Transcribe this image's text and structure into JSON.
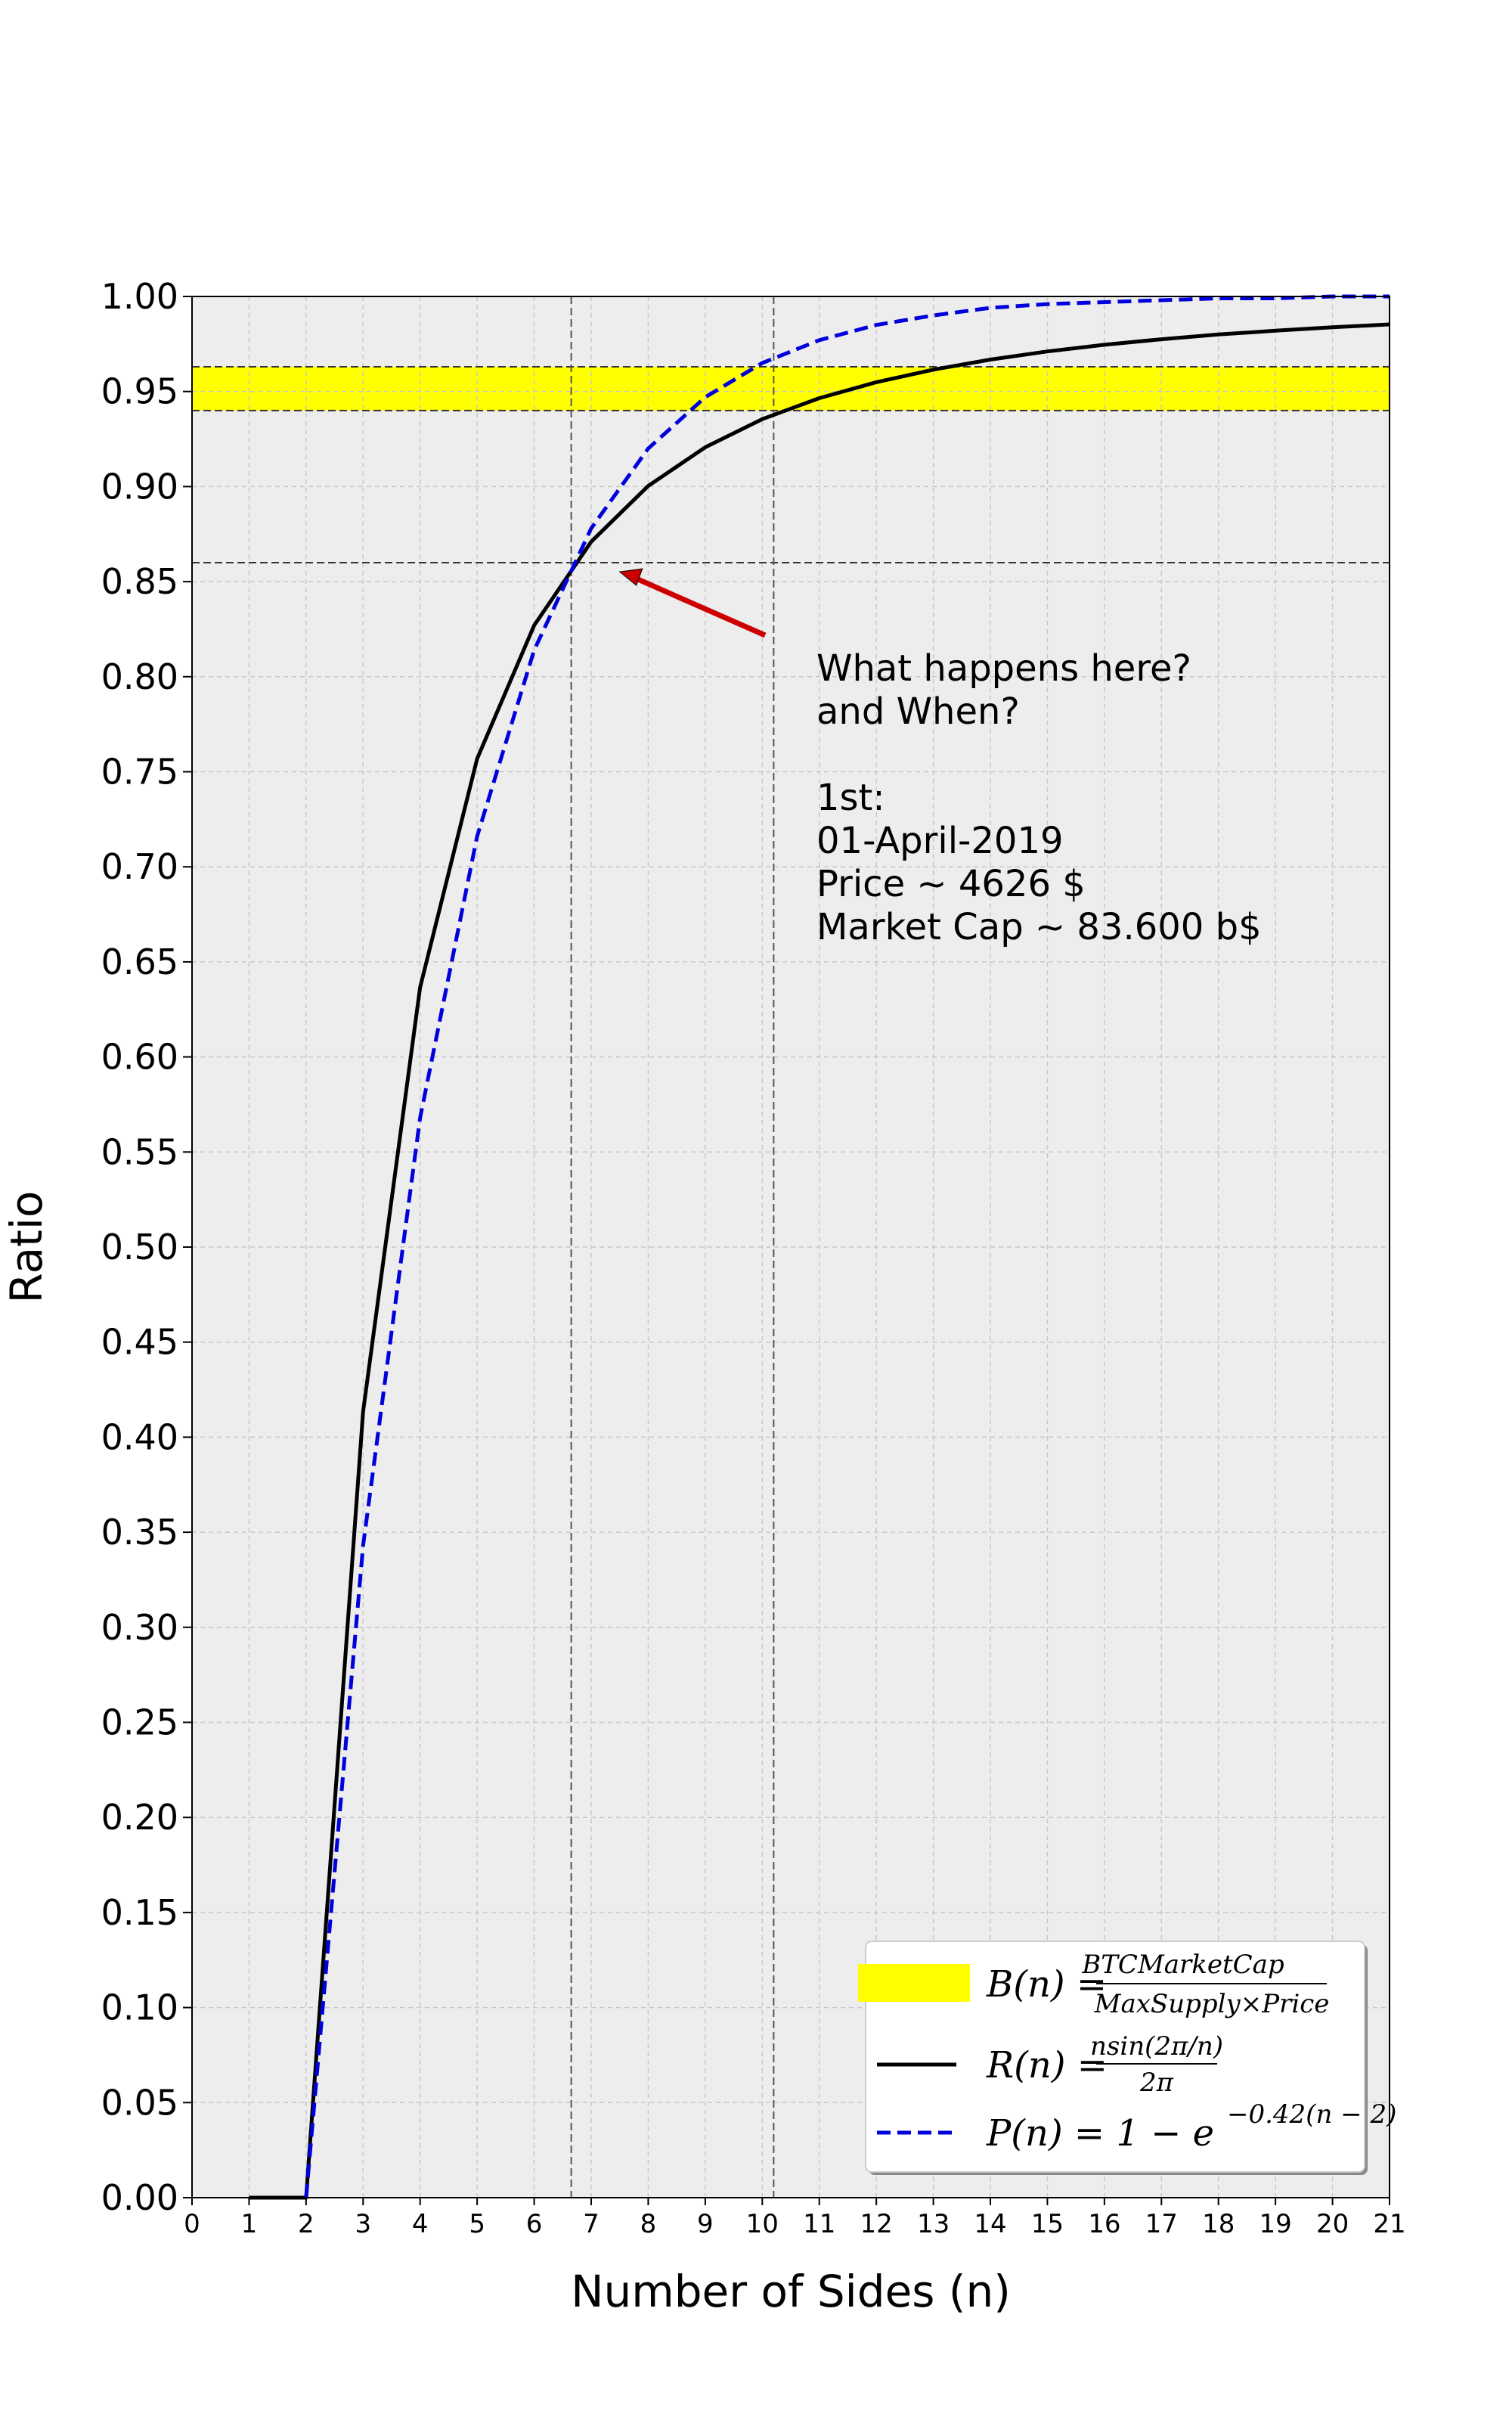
{
  "chart_data": {
    "type": "line",
    "xlabel": "Number of Sides (n)",
    "ylabel": "Ratio",
    "xlim": [
      0,
      21
    ],
    "ylim": [
      0,
      1
    ],
    "x_ticks": [
      "0",
      "1",
      "2",
      "3",
      "4",
      "5",
      "6",
      "7",
      "8",
      "9",
      "10",
      "11",
      "12",
      "13",
      "14",
      "15",
      "16",
      "17",
      "18",
      "19",
      "20",
      "21"
    ],
    "y_ticks": [
      "0.00",
      "0.05",
      "0.10",
      "0.15",
      "0.20",
      "0.25",
      "0.30",
      "0.35",
      "0.40",
      "0.45",
      "0.50",
      "0.55",
      "0.60",
      "0.65",
      "0.70",
      "0.75",
      "0.80",
      "0.85",
      "0.90",
      "0.95",
      "1.00"
    ],
    "grid": true,
    "legend_position": "bottom-right",
    "band": {
      "y_low": 0.94,
      "y_high": 0.963,
      "color": "#ffff00"
    },
    "reference_lines": {
      "horizontal": [
        0.86
      ],
      "vertical": [
        6.65,
        10.2
      ]
    },
    "series": [
      {
        "style": "solid",
        "color": "#000000",
        "x": [
          1,
          2,
          3,
          4,
          5,
          6,
          7,
          8,
          9,
          10,
          11,
          12,
          13,
          14,
          15,
          16,
          17,
          18,
          19,
          20,
          21
        ],
        "values": [
          0,
          0,
          0.4135,
          0.6366,
          0.7568,
          0.827,
          0.871,
          0.9003,
          0.9207,
          0.9355,
          0.9465,
          0.9549,
          0.9615,
          0.9668,
          0.9711,
          0.9746,
          0.9775,
          0.98,
          0.982,
          0.9838,
          0.9853
        ]
      },
      {
        "style": "dashed",
        "color": "#0000dd",
        "x": [
          2,
          3,
          4,
          5,
          6,
          7,
          8,
          9,
          10,
          11,
          12,
          13,
          14,
          15,
          16,
          17,
          18,
          19,
          20,
          21
        ],
        "values": [
          0,
          0.343,
          0.568,
          0.716,
          0.814,
          0.878,
          0.92,
          0.947,
          0.965,
          0.977,
          0.985,
          0.99,
          0.994,
          0.996,
          0.997,
          0.998,
          0.999,
          0.999,
          1.0,
          1.0
        ]
      }
    ],
    "legend": [
      {
        "swatch": "band",
        "label_prefix": "B(n) = ",
        "numerator": "BTCMarketCap",
        "denominator": "MaxSupply×Price"
      },
      {
        "swatch": "solid",
        "label_prefix": "R(n) = ",
        "numerator": "nsin(2π/n)",
        "denominator": "2π"
      },
      {
        "swatch": "dashed",
        "label_text": "P(n) = 1 − e",
        "label_sup": "−0.42(n − 2)"
      }
    ],
    "annotation": {
      "lines": [
        "What happens here?",
        " and When?",
        "",
        " 1st:",
        " 01-April-2019",
        " Price ~ 4626 $",
        " Market Cap ~ 83.600 b$"
      ],
      "arrow_color": "#cc0000",
      "arrow_target": {
        "x": 7.5,
        "y": 0.85
      }
    }
  }
}
